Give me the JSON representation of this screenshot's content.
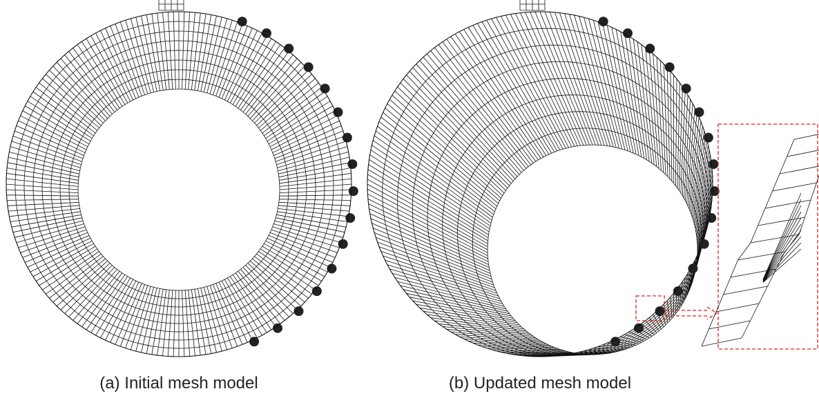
{
  "panels": [
    {
      "caption": "(a) Initial mesh model"
    },
    {
      "caption": "(b) Updated mesh model"
    }
  ]
}
